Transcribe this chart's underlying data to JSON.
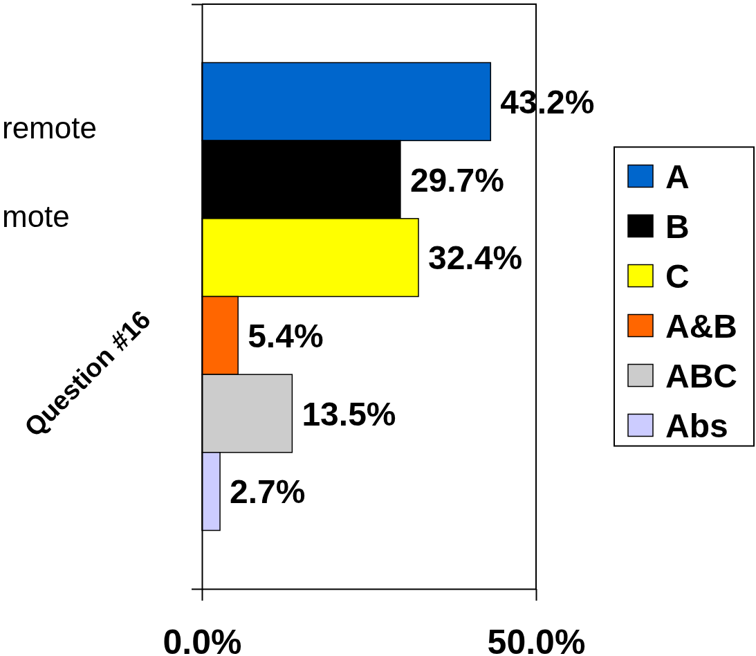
{
  "chart_data": {
    "type": "bar",
    "orientation": "horizontal",
    "categories": [
      null
    ],
    "ylabel": "Question #16",
    "series": [
      {
        "name": "A",
        "color": "#0066cc",
        "values": [
          43.2
        ],
        "value_labels": [
          "43.2%"
        ]
      },
      {
        "name": "B",
        "color": "#000000",
        "values": [
          29.7
        ],
        "value_labels": [
          "29.7%"
        ]
      },
      {
        "name": "C",
        "color": "#ffff00",
        "values": [
          32.4
        ],
        "value_labels": [
          "32.4%"
        ]
      },
      {
        "name": "A&B",
        "color": "#ff6600",
        "values": [
          5.4
        ],
        "value_labels": [
          "5.4%"
        ]
      },
      {
        "name": "ABC",
        "color": "#cccccc",
        "values": [
          13.5
        ],
        "value_labels": [
          "13.5%"
        ]
      },
      {
        "name": "Abs",
        "color": "#ccccff",
        "values": [
          2.7
        ],
        "value_labels": [
          "2.7%"
        ]
      }
    ],
    "xlim": [
      0,
      50
    ],
    "xticks": [
      {
        "value": 0,
        "label": "0.0%"
      },
      {
        "value": 50,
        "label": "50.0%"
      }
    ],
    "legend": "right",
    "annotations": [
      "remote",
      "mote"
    ]
  }
}
